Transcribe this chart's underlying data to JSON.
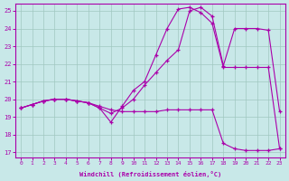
{
  "xlabel": "Windchill (Refroidissement éolien,°C)",
  "bg_color": "#c8e8e8",
  "line_color": "#aa00aa",
  "grid_color": "#a0c8c0",
  "xlim_min": -0.5,
  "xlim_max": 23.5,
  "ylim_min": 16.7,
  "ylim_max": 25.4,
  "xticks": [
    0,
    1,
    2,
    3,
    4,
    5,
    6,
    7,
    8,
    9,
    10,
    11,
    12,
    13,
    14,
    15,
    16,
    17,
    18,
    19,
    20,
    21,
    22,
    23
  ],
  "yticks": [
    17,
    18,
    19,
    20,
    21,
    22,
    23,
    24,
    25
  ],
  "line1_x": [
    0,
    1,
    2,
    3,
    4,
    5,
    6,
    7,
    8,
    9,
    10,
    11,
    12,
    13,
    14,
    15,
    16,
    17,
    18,
    19,
    20,
    21,
    22,
    23
  ],
  "line1_y": [
    19.5,
    19.7,
    19.9,
    20.0,
    20.0,
    19.9,
    19.8,
    19.6,
    19.4,
    19.3,
    19.3,
    19.3,
    19.3,
    19.4,
    19.4,
    19.4,
    19.4,
    19.4,
    17.5,
    17.2,
    17.1,
    17.1,
    17.1,
    17.2
  ],
  "line2_x": [
    0,
    1,
    2,
    3,
    4,
    5,
    6,
    7,
    8,
    9,
    10,
    11,
    12,
    13,
    14,
    15,
    16,
    17,
    18,
    19,
    20,
    21,
    22,
    23
  ],
  "line2_y": [
    19.5,
    19.7,
    19.9,
    20.0,
    20.0,
    19.9,
    19.8,
    19.5,
    18.7,
    19.6,
    20.5,
    21.0,
    22.5,
    24.0,
    25.1,
    25.2,
    24.9,
    24.3,
    21.8,
    21.8,
    21.8,
    21.8,
    21.8,
    17.2
  ],
  "line3_x": [
    0,
    1,
    2,
    3,
    4,
    5,
    6,
    7,
    8,
    9,
    10,
    11,
    12,
    13,
    14,
    15,
    16,
    17,
    18,
    19,
    20,
    21,
    22,
    23
  ],
  "line3_y": [
    19.5,
    19.7,
    19.9,
    20.0,
    20.0,
    19.9,
    19.8,
    19.5,
    19.2,
    19.5,
    20.0,
    20.8,
    21.5,
    22.2,
    22.8,
    25.0,
    25.2,
    24.7,
    21.9,
    24.0,
    24.0,
    24.0,
    23.9,
    19.3
  ]
}
